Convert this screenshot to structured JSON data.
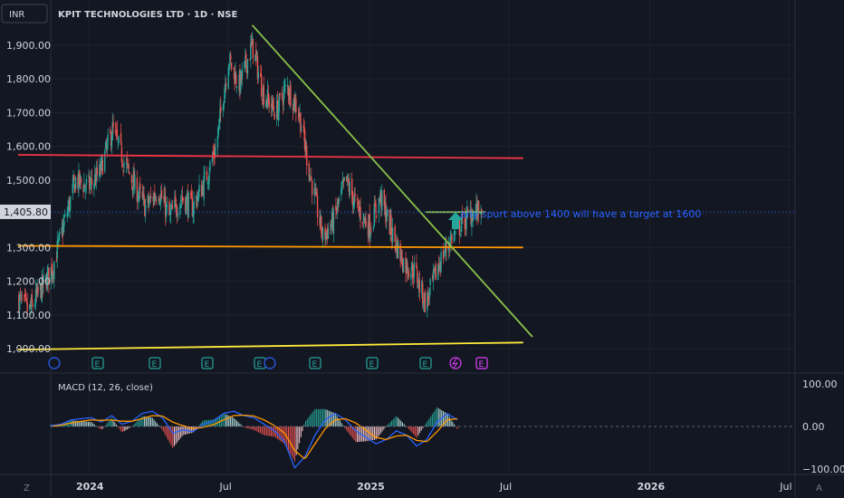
{
  "symbol": {
    "currency": "INR",
    "title": "KPIT TECHNOLOGIES LTD · 1D · NSE"
  },
  "price_axis": {
    "ticks": [
      "1,900.00",
      "1,800.00",
      "1,700.00",
      "1,600.00",
      "1,500.00",
      "1,300.00",
      "1,200.00",
      "1,100.00",
      "1,000.00"
    ],
    "last_price": "1,405.80"
  },
  "time_axis": {
    "labels": [
      "2024",
      "Jul",
      "2025",
      "Jul",
      "2026",
      "Jul"
    ]
  },
  "macd": {
    "title": "MACD (12, 26, close)",
    "ticks": [
      "100.00",
      "0.00",
      "−100.00"
    ]
  },
  "annotation": {
    "text": "any spurt above 1400 will have a target at 1600"
  },
  "event_markers": [
    "E",
    "E",
    "E",
    "E",
    "E",
    "E",
    "E",
    "E"
  ],
  "corner_buttons": {
    "left": "Z",
    "right": "A"
  },
  "colors": {
    "up": "#26a69a",
    "down": "#ef5350",
    "resistance": "#f23645",
    "support": "#ff9800",
    "bottom_support": "#ffeb3b",
    "trendline": "#8bc34a",
    "annotation": "#2962ff",
    "macd_line": "#2962ff",
    "signal_line": "#ff9800"
  },
  "chart_data": {
    "type": "candlestick",
    "title": "KPIT TECHNOLOGIES LTD · 1D · NSE",
    "ylim": [
      970,
      1980
    ],
    "x_range": [
      "2023-10",
      "2026-10"
    ],
    "closes": [
      [
        "2023-10-01",
        1150
      ],
      [
        "2023-10-15",
        1110
      ],
      [
        "2023-11-01",
        1180
      ],
      [
        "2023-11-15",
        1240
      ],
      [
        "2023-12-01",
        1380
      ],
      [
        "2023-12-15",
        1500
      ],
      [
        "2024-01-01",
        1480
      ],
      [
        "2024-01-15",
        1520
      ],
      [
        "2024-02-01",
        1650
      ],
      [
        "2024-02-15",
        1560
      ],
      [
        "2024-03-01",
        1480
      ],
      [
        "2024-03-15",
        1420
      ],
      [
        "2024-04-01",
        1470
      ],
      [
        "2024-04-15",
        1390
      ],
      [
        "2024-05-01",
        1450
      ],
      [
        "2024-05-15",
        1420
      ],
      [
        "2024-06-01",
        1500
      ],
      [
        "2024-06-15",
        1600
      ],
      [
        "2024-07-01",
        1860
      ],
      [
        "2024-07-15",
        1780
      ],
      [
        "2024-08-01",
        1900
      ],
      [
        "2024-08-15",
        1760
      ],
      [
        "2024-09-01",
        1700
      ],
      [
        "2024-09-15",
        1780
      ],
      [
        "2024-10-01",
        1700
      ],
      [
        "2024-10-15",
        1520
      ],
      [
        "2024-11-01",
        1330
      ],
      [
        "2024-11-15",
        1380
      ],
      [
        "2024-12-01",
        1500
      ],
      [
        "2024-12-15",
        1420
      ],
      [
        "2025-01-01",
        1360
      ],
      [
        "2025-01-15",
        1450
      ],
      [
        "2025-02-01",
        1330
      ],
      [
        "2025-02-15",
        1250
      ],
      [
        "2025-03-01",
        1230
      ],
      [
        "2025-03-15",
        1130
      ],
      [
        "2025-04-01",
        1250
      ],
      [
        "2025-04-15",
        1320
      ],
      [
        "2025-05-01",
        1370
      ],
      [
        "2025-05-15",
        1405.8
      ]
    ],
    "horizontal_lines": [
      {
        "start": [
          "2023-10-01",
          1575
        ],
        "end": [
          "2025-07-20",
          1565
        ]
      },
      {
        "start": [
          "2023-10-01",
          1305
        ],
        "end": [
          "2025-07-20",
          1300
        ]
      },
      {
        "start": [
          "2023-10-01",
          997
        ],
        "end": [
          "2025-07-20",
          1018
        ]
      },
      {
        "start": [
          "2025-03-15",
          1405
        ],
        "end": [
          "2025-06-01",
          1405
        ]
      }
    ],
    "trendline": {
      "start": [
        "2024-08-01",
        1960
      ],
      "end": [
        "2025-08-01",
        1035
      ]
    },
    "macd": {
      "ylim": [
        -110,
        110
      ],
      "ticks": [
        100,
        0,
        -100
      ],
      "macd_series": [
        2,
        5,
        15,
        18,
        20,
        10,
        25,
        5,
        12,
        30,
        35,
        20,
        -15,
        -8,
        -12,
        5,
        12,
        30,
        35,
        25,
        20,
        5,
        -10,
        -35,
        -95,
        -70,
        -20,
        15,
        30,
        15,
        -10,
        -25,
        -40,
        -30,
        -10,
        -20,
        -45,
        -30,
        10,
        30,
        15
      ],
      "signal_series": [
        0,
        3,
        8,
        12,
        15,
        14,
        15,
        12,
        12,
        18,
        25,
        24,
        10,
        2,
        -5,
        -2,
        4,
        15,
        25,
        26,
        24,
        15,
        2,
        -15,
        -55,
        -75,
        -40,
        -5,
        15,
        18,
        8,
        -8,
        -25,
        -30,
        -22,
        -20,
        -32,
        -35,
        -12,
        15,
        18
      ]
    }
  }
}
